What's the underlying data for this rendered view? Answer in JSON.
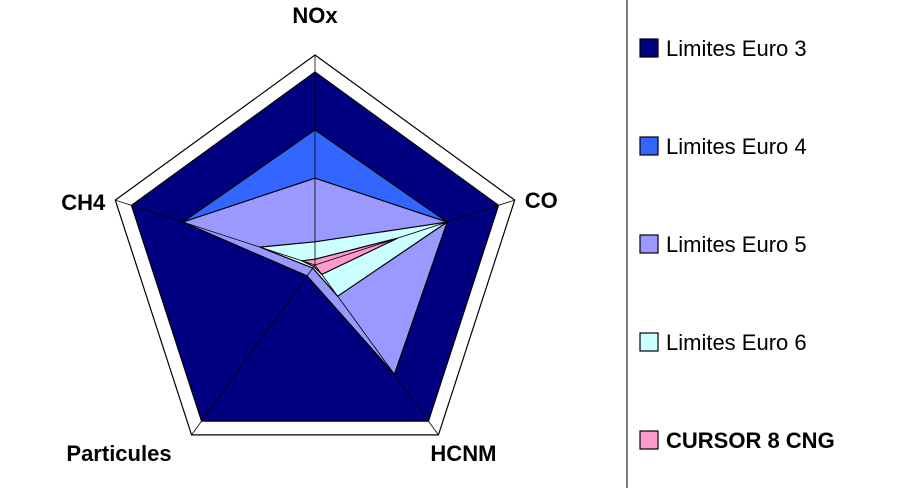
{
  "chart_data": {
    "type": "radar",
    "axes": [
      "NOx",
      "CO",
      "HCNM",
      "Particules",
      "CH4"
    ],
    "range": [
      0,
      1
    ],
    "grid": false,
    "legend_position": "right",
    "series": [
      {
        "name": "Limites Euro 3",
        "color": "#000080",
        "values": [
          1.0,
          1.0,
          1.0,
          1.0,
          1.0
        ]
      },
      {
        "name": "Limites Euro 4",
        "color": "#3366ff",
        "values": [
          0.7,
          0.72,
          0.7,
          0.07,
          0.72
        ]
      },
      {
        "name": "Limites Euro 5",
        "color": "#9999ff",
        "values": [
          0.45,
          0.72,
          0.7,
          0.07,
          0.72
        ]
      },
      {
        "name": "Limites Euro 6",
        "color": "#ccffff",
        "values": [
          0.12,
          0.72,
          0.2,
          0.02,
          0.3
        ]
      },
      {
        "name": "CURSOR 8 CNG",
        "color": "#ff99cc",
        "bold": true,
        "values": [
          0.03,
          0.45,
          0.06,
          0.01,
          0.07
        ]
      }
    ]
  }
}
